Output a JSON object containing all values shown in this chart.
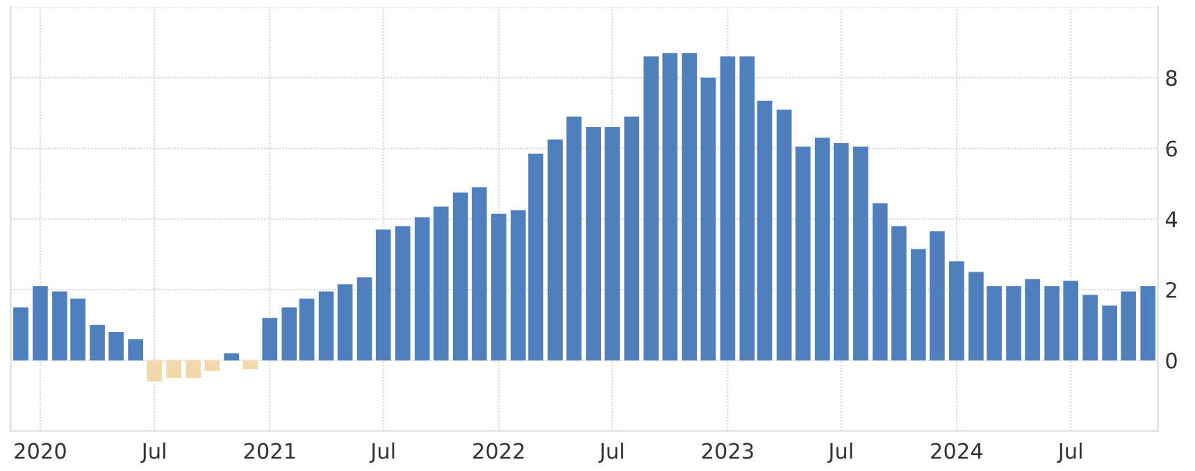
{
  "chart_data": {
    "type": "bar",
    "x": [
      "2019-12",
      "2020-01",
      "2020-02",
      "2020-03",
      "2020-04",
      "2020-05",
      "2020-06",
      "2020-07",
      "2020-08",
      "2020-09",
      "2020-10",
      "2020-11",
      "2020-12",
      "2021-01",
      "2021-02",
      "2021-03",
      "2021-04",
      "2021-05",
      "2021-06",
      "2021-07",
      "2021-08",
      "2021-09",
      "2021-10",
      "2021-11",
      "2021-12",
      "2022-01",
      "2022-02",
      "2022-03",
      "2022-04",
      "2022-05",
      "2022-06",
      "2022-07",
      "2022-08",
      "2022-09",
      "2022-10",
      "2022-11",
      "2022-12",
      "2023-01",
      "2023-02",
      "2023-03",
      "2023-04",
      "2023-05",
      "2023-06",
      "2023-07",
      "2023-08",
      "2023-09",
      "2023-10",
      "2023-11",
      "2023-12",
      "2024-01",
      "2024-02",
      "2024-03",
      "2024-04",
      "2024-05",
      "2024-06",
      "2024-07",
      "2024-08",
      "2024-09",
      "2024-10",
      "2024-11"
    ],
    "values": [
      1.5,
      2.1,
      1.95,
      1.75,
      1.0,
      0.8,
      0.6,
      -0.6,
      -0.5,
      -0.5,
      -0.3,
      0.2,
      -0.25,
      1.2,
      1.5,
      1.75,
      1.95,
      2.15,
      2.35,
      3.7,
      3.8,
      4.05,
      4.35,
      4.75,
      4.9,
      4.15,
      4.25,
      5.85,
      6.25,
      6.9,
      6.6,
      6.6,
      6.9,
      8.6,
      8.7,
      8.7,
      8.0,
      8.6,
      8.6,
      7.35,
      7.1,
      6.05,
      6.3,
      6.15,
      6.05,
      4.45,
      3.8,
      3.15,
      3.65,
      2.8,
      2.5,
      2.1,
      2.1,
      2.3,
      2.1,
      2.25,
      1.85,
      1.55,
      1.95,
      2.1
    ],
    "colors": [
      "#4f7fbd",
      "#4f7fbd",
      "#4f7fbd",
      "#4f7fbd",
      "#4f7fbd",
      "#4f7fbd",
      "#4f7fbd",
      "#f2d9aa",
      "#f2d9aa",
      "#f2d9aa",
      "#f2d9aa",
      "#4f7fbd",
      "#f2d9aa",
      "#4f7fbd",
      "#4f7fbd",
      "#4f7fbd",
      "#4f7fbd",
      "#4f7fbd",
      "#4f7fbd",
      "#4f7fbd",
      "#4f7fbd",
      "#4f7fbd",
      "#4f7fbd",
      "#4f7fbd",
      "#4f7fbd",
      "#4f7fbd",
      "#4f7fbd",
      "#4f7fbd",
      "#4f7fbd",
      "#4f7fbd",
      "#4f7fbd",
      "#4f7fbd",
      "#4f7fbd",
      "#4f7fbd",
      "#4f7fbd",
      "#4f7fbd",
      "#4f7fbd",
      "#4f7fbd",
      "#4f7fbd",
      "#4f7fbd",
      "#4f7fbd",
      "#4f7fbd",
      "#4f7fbd",
      "#4f7fbd",
      "#4f7fbd",
      "#4f7fbd",
      "#4f7fbd",
      "#4f7fbd",
      "#4f7fbd",
      "#4f7fbd",
      "#4f7fbd",
      "#4f7fbd",
      "#4f7fbd",
      "#4f7fbd",
      "#4f7fbd",
      "#4f7fbd",
      "#4f7fbd",
      "#4f7fbd",
      "#4f7fbd",
      "#4f7fbd"
    ],
    "xlim": [
      "2019-11-15",
      "2024-11-17"
    ],
    "xticks": [
      {
        "value": "2020-01",
        "label": "2020"
      },
      {
        "value": "2020-07",
        "label": "Jul"
      },
      {
        "value": "2021-01",
        "label": "2021"
      },
      {
        "value": "2021-07",
        "label": "Jul"
      },
      {
        "value": "2022-01",
        "label": "2022"
      },
      {
        "value": "2022-07",
        "label": "Jul"
      },
      {
        "value": "2023-01",
        "label": "2023"
      },
      {
        "value": "2023-07",
        "label": "Jul"
      },
      {
        "value": "2024-01",
        "label": "2024"
      },
      {
        "value": "2024-07",
        "label": "Jul"
      }
    ],
    "ylim": [
      -2,
      10
    ],
    "yticks": [
      0,
      2,
      4,
      6,
      8,
      {
        "value": 10,
        "label": null
      }
    ],
    "grid": true,
    "legend": false
  }
}
